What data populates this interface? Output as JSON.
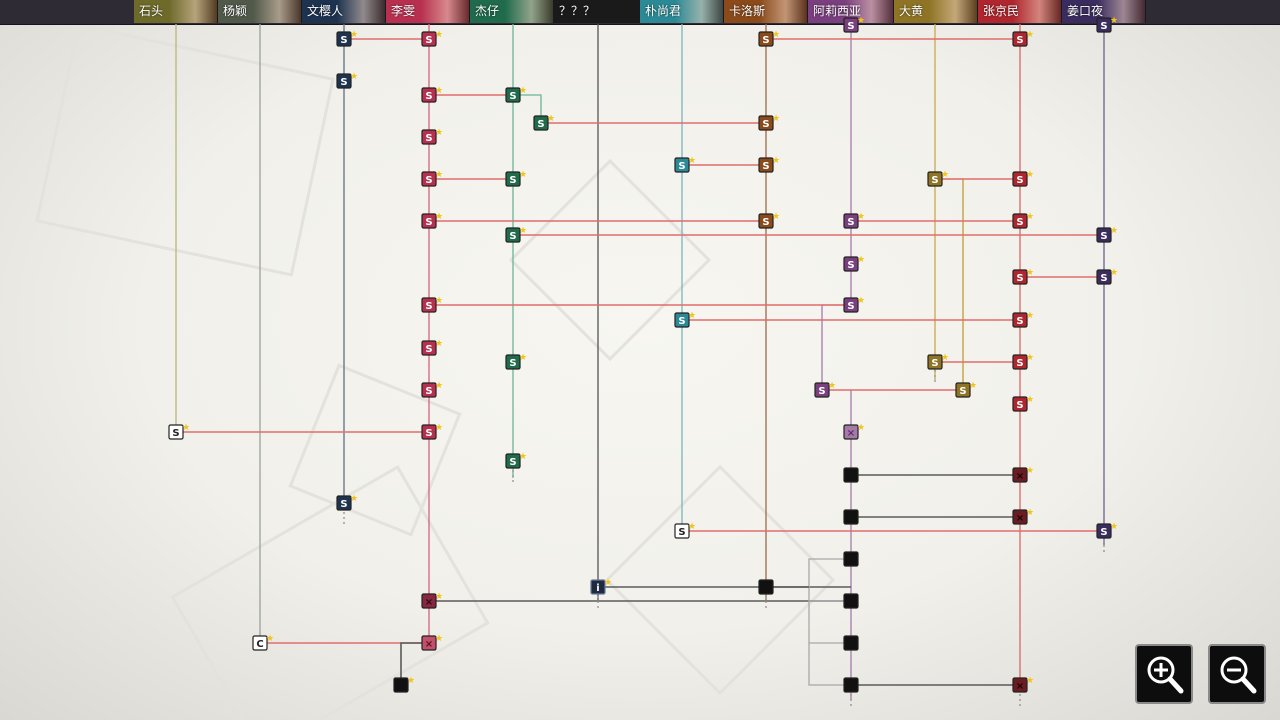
{
  "characters": [
    {
      "id": "shitou",
      "name": "石头",
      "color": "#6e6a2a"
    },
    {
      "id": "yangying",
      "name": "杨颖",
      "color": "#51594a"
    },
    {
      "id": "wenying",
      "name": "文樱人",
      "color": "#1d3350"
    },
    {
      "id": "li",
      "name": "李雯",
      "color": "#b8304f"
    },
    {
      "id": "jiezai",
      "name": "杰仔",
      "color": "#1f6b4c"
    },
    {
      "id": "unknown",
      "name": "？？？",
      "color": "#1a1a1a"
    },
    {
      "id": "pu",
      "name": "朴尚君",
      "color": "#2b8a95"
    },
    {
      "id": "carlos",
      "name": "卡洛斯",
      "color": "#8a4a1a"
    },
    {
      "id": "alicia",
      "name": "阿莉西亚",
      "color": "#7a3f7f"
    },
    {
      "id": "dahuang",
      "name": "大黄",
      "color": "#8e7424"
    },
    {
      "id": "zhang",
      "name": "张京民",
      "color": "#b0262e"
    },
    {
      "id": "jiang",
      "name": "姜口夜",
      "color": "#3a2c5e"
    }
  ],
  "node_glyphs": {
    "save": "S",
    "info": "i",
    "choice": "C",
    "locked": "×"
  },
  "colors": {
    "link_red": "#e26d6d",
    "link_dark": "#5a5a5a",
    "link_gray": "#a8a8a8",
    "star": "#f0c419",
    "locked_node": "#111111"
  },
  "controls": {
    "zoom_in": "zoom-in-icon",
    "zoom_out": "zoom-out-icon"
  }
}
